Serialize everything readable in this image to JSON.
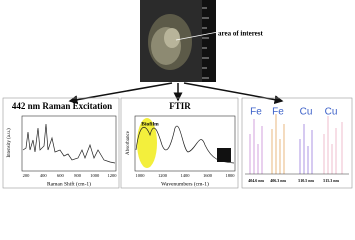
{
  "photo": {
    "label": "area of interest"
  },
  "raman": {
    "title": "442 nm Raman Excitation",
    "x_label": "Raman Shift (cm-1)",
    "y_label": "Intensity (a.u.)",
    "x_ticks": [
      200,
      400,
      600,
      800,
      1000,
      1200
    ]
  },
  "ftir": {
    "title": "FTIR",
    "x_label": "Wavenumbers (cm-1)",
    "y_label": "Absorbance",
    "annotation": "Biofilm",
    "x_ticks": [
      1000,
      1200,
      1400,
      1600,
      1800
    ]
  },
  "emission": {
    "elements": [
      "Fe",
      "Fe",
      "Cu",
      "Cu"
    ],
    "wavelengths": [
      "404.6 nm",
      "406.3 nm",
      "510.5 nm",
      "515.3 nm"
    ]
  }
}
